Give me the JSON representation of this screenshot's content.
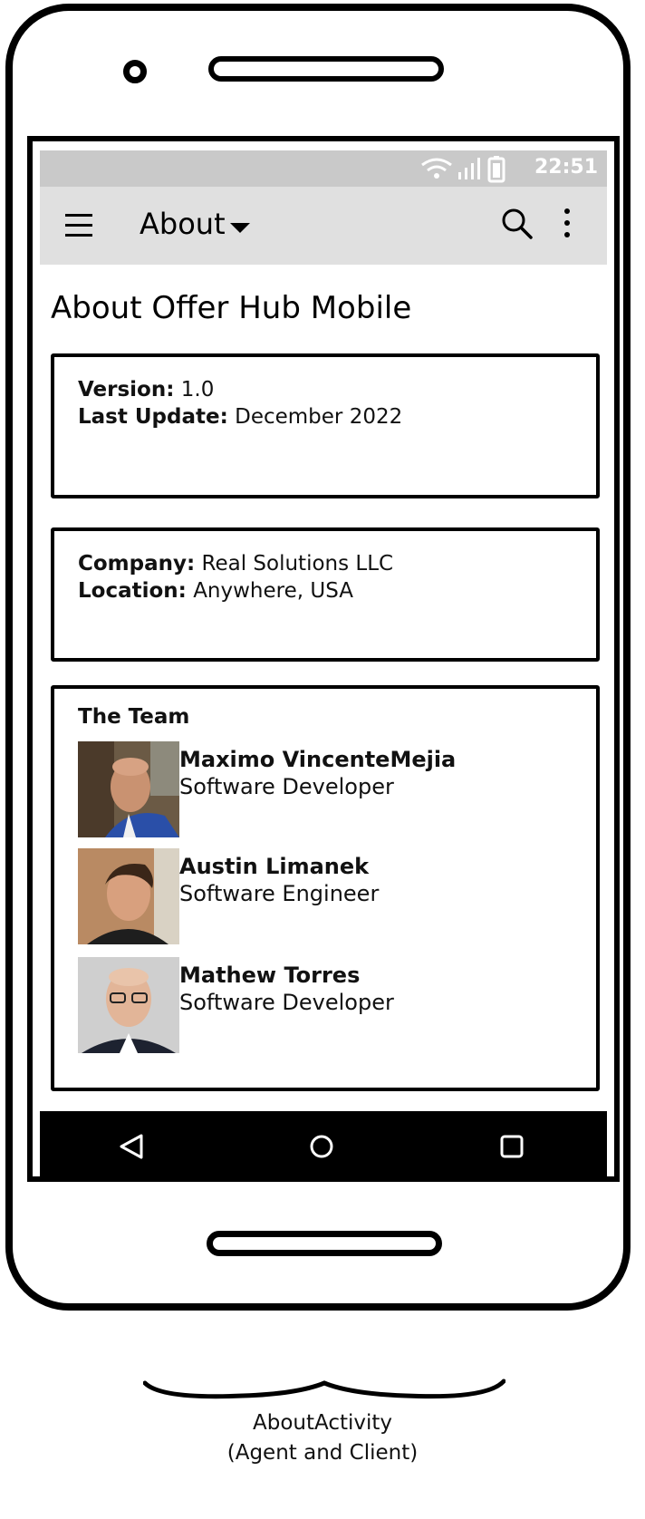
{
  "status_bar": {
    "time": "22:51"
  },
  "app_bar": {
    "title": "About",
    "icons": {
      "menu": "hamburger-menu-icon",
      "dropdown": "caret-down-icon",
      "search": "search-icon",
      "overflow": "more-vert-icon"
    }
  },
  "page": {
    "title": "About Offer Hub Mobile"
  },
  "version_card": {
    "version_label": "Version:",
    "version_value": "1.0",
    "update_label": "Last Update:",
    "update_value": "December 2022"
  },
  "company_card": {
    "company_label": "Company:",
    "company_value": "Real Solutions LLC",
    "location_label": "Location:",
    "location_value": "Anywhere, USA"
  },
  "team": {
    "heading": "The Team",
    "members": [
      {
        "name": "Maximo VincenteMejia",
        "role": "Software Developer"
      },
      {
        "name": "Austin Limanek",
        "role": "Software Engineer"
      },
      {
        "name": "Mathew Torres",
        "role": "Software Developer"
      }
    ]
  },
  "nav_bar": {
    "icons": [
      "back-icon",
      "home-icon",
      "recents-icon"
    ]
  },
  "caption": {
    "line1": "AboutActivity",
    "line2": "(Agent and Client)"
  },
  "colors": {
    "status_bar": "#c9c9c9",
    "app_bar": "#e0e0e0",
    "nav_bar": "#000000"
  }
}
